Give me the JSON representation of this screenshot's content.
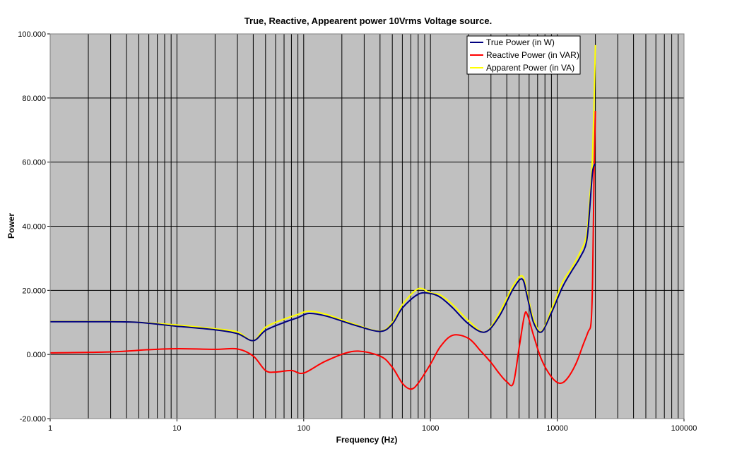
{
  "chart_data": {
    "type": "line",
    "title": "True, Reactive, Appearent power 10Vrms Voltage source.",
    "xlabel": "Frequency (Hz)",
    "ylabel": "Power",
    "x_scale": "log",
    "xlim": [
      1,
      100000
    ],
    "ylim": [
      -20,
      100
    ],
    "x_ticks": [
      "1",
      "10",
      "100",
      "1000",
      "10000",
      "100000"
    ],
    "y_ticks": [
      "-20.000",
      "0.000",
      "20.000",
      "40.000",
      "60.000",
      "80.000",
      "100.000"
    ],
    "grid": true,
    "legend_position": "top-right",
    "colors": {
      "plot_background": "#c0c0c0",
      "grid": "#000000"
    },
    "series": [
      {
        "name": "True Power (in W)",
        "color": "#000080",
        "x": [
          1,
          3,
          5,
          10,
          20,
          30,
          40,
          50,
          70,
          90,
          110,
          150,
          250,
          400,
          500,
          600,
          800,
          1000,
          1200,
          1500,
          2000,
          2700,
          3500,
          4500,
          5300,
          5800,
          6500,
          7500,
          9000,
          11000,
          13000,
          15000,
          17000,
          18000,
          19000,
          20000
        ],
        "y": [
          10.2,
          10.2,
          10.0,
          8.8,
          7.7,
          6.5,
          4.3,
          7.5,
          10.0,
          11.5,
          12.8,
          12.0,
          9.2,
          7.2,
          9.5,
          14.5,
          18.8,
          19.0,
          17.8,
          14.5,
          9.5,
          7.0,
          12.0,
          20.5,
          23.5,
          18.0,
          10.0,
          7.0,
          13.0,
          21.0,
          26.0,
          30.0,
          35.0,
          45.0,
          57.0,
          59.5
        ]
      },
      {
        "name": "Reactive Power (in VAR)",
        "color": "#ff0000",
        "x": [
          1,
          3,
          6,
          10,
          20,
          30,
          40,
          50,
          60,
          80,
          100,
          150,
          250,
          400,
          500,
          600,
          700,
          800,
          1000,
          1200,
          1500,
          2000,
          2500,
          3000,
          3500,
          4000,
          4500,
          5000,
          5500,
          5800,
          6500,
          7500,
          9000,
          10500,
          12000,
          14000,
          16000,
          17500,
          18500,
          19000,
          19500,
          20000
        ],
        "y": [
          0.5,
          0.8,
          1.5,
          1.8,
          1.6,
          1.7,
          -0.5,
          -5.0,
          -5.5,
          -5.0,
          -5.8,
          -2.0,
          1.0,
          -0.5,
          -4.0,
          -9.0,
          -10.8,
          -9.0,
          -3.0,
          2.5,
          6.0,
          5.0,
          1.0,
          -2.5,
          -6.0,
          -8.5,
          -9.0,
          2.0,
          12.0,
          12.5,
          6.0,
          -1.5,
          -7.0,
          -9.0,
          -7.5,
          -3.0,
          3.0,
          7.0,
          10.0,
          23.0,
          55.0,
          76.0
        ]
      },
      {
        "name": "Apparent Power (in VA)",
        "color": "#ffff00",
        "x": [
          1,
          3,
          5,
          10,
          20,
          30,
          40,
          50,
          70,
          90,
          110,
          150,
          250,
          400,
          500,
          600,
          800,
          1000,
          1200,
          1500,
          2000,
          2700,
          3500,
          4500,
          5300,
          5800,
          6500,
          7500,
          9000,
          11000,
          13000,
          15000,
          17000,
          18000,
          19000,
          20000
        ],
        "y": [
          10.3,
          10.3,
          10.0,
          9.2,
          8.0,
          7.0,
          4.3,
          8.5,
          11.0,
          12.5,
          13.5,
          12.5,
          9.5,
          7.3,
          10.0,
          15.5,
          20.5,
          19.2,
          18.5,
          15.5,
          10.5,
          7.0,
          13.0,
          21.5,
          24.5,
          19.0,
          11.0,
          7.2,
          14.0,
          22.5,
          27.0,
          31.5,
          37.0,
          48.0,
          62.0,
          96.5
        ]
      }
    ]
  }
}
